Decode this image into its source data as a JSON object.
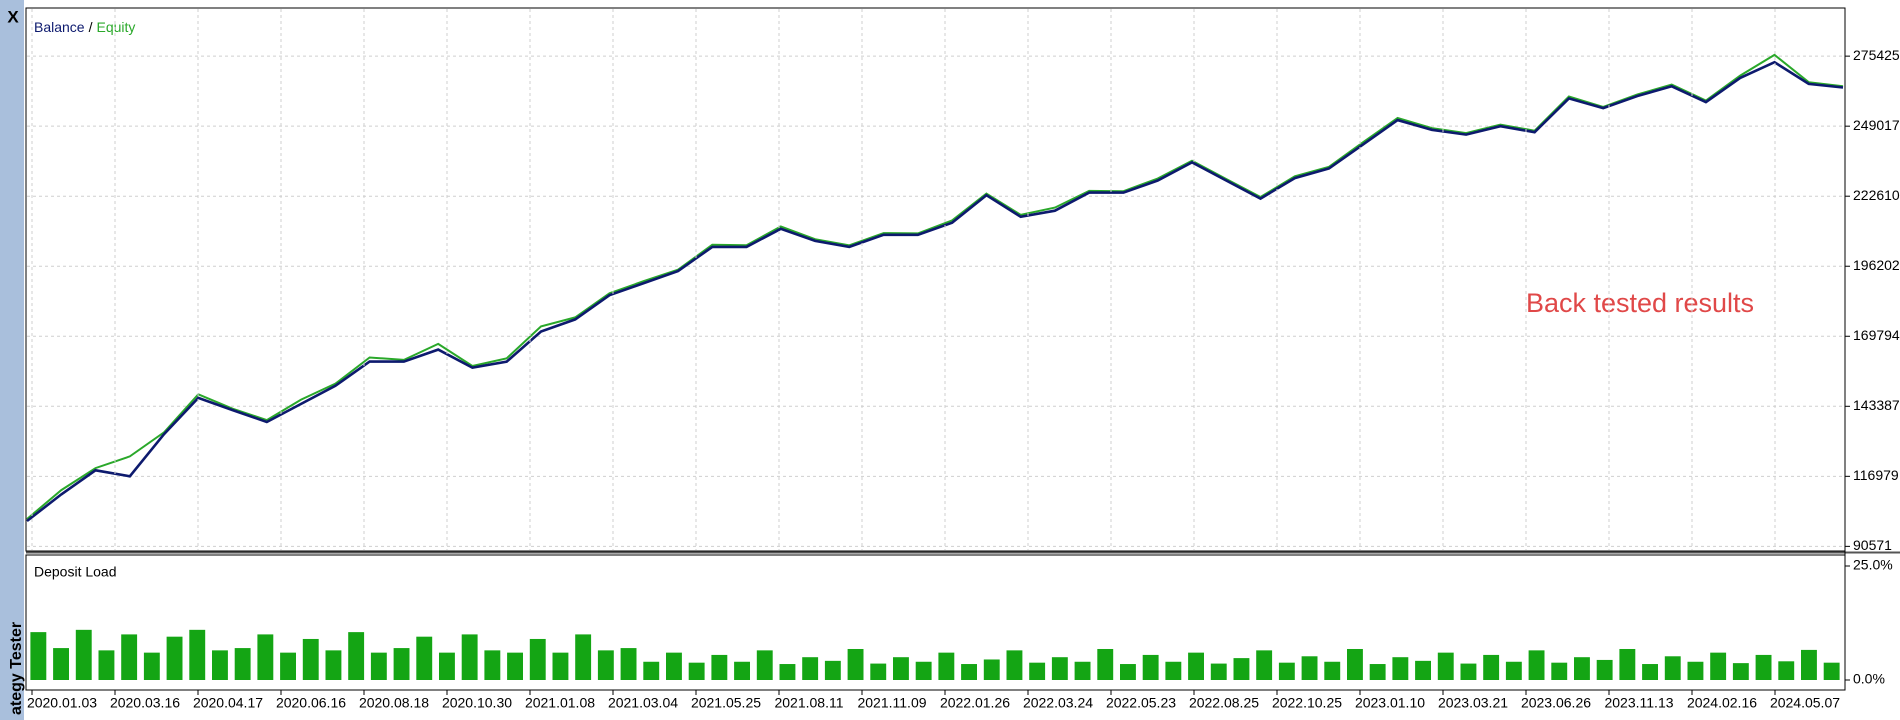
{
  "window": {
    "close": "X",
    "side_title": "ategy Tester"
  },
  "chart_data": [
    {
      "type": "line",
      "legend_separator": "/",
      "annotation": "Back tested results",
      "grid": true,
      "ylim": [
        89200,
        293200
      ],
      "yticks": [
        90571,
        116979,
        143387,
        169794,
        196202,
        222610,
        249017,
        275425
      ],
      "series": [
        {
          "name": "Balance",
          "color": "#0d1a6e",
          "values": [
            100130,
            110150,
            119260,
            116980,
            132920,
            146570,
            141970,
            137470,
            144300,
            151130,
            160230,
            160230,
            164780,
            157960,
            160230,
            171610,
            176170,
            185270,
            189830,
            194380,
            203490,
            203490,
            210320,
            205760,
            203490,
            208040,
            208040,
            212600,
            222970,
            214860,
            217150,
            223970,
            223970,
            228530,
            235360,
            228530,
            221700,
            229430,
            233080,
            242180,
            251290,
            247650,
            245830,
            249020,
            246740,
            259490,
            255850,
            260400,
            264040,
            258110,
            267230,
            273150,
            264950,
            263590
          ]
        },
        {
          "name": "Equity",
          "color": "#2aa82a",
          "values": [
            100900,
            111800,
            120100,
            124500,
            133600,
            147900,
            142500,
            138200,
            145900,
            151900,
            161800,
            160900,
            166900,
            158600,
            161500,
            173500,
            176900,
            186000,
            190600,
            194900,
            204300,
            204100,
            211200,
            206400,
            204100,
            208700,
            208600,
            213500,
            223600,
            215600,
            218300,
            224600,
            224500,
            229300,
            236000,
            229100,
            222300,
            230100,
            233700,
            243000,
            252100,
            248300,
            246400,
            249600,
            247300,
            260200,
            256300,
            261000,
            264700,
            258700,
            268100,
            275900,
            265600,
            264100
          ]
        }
      ]
    },
    {
      "type": "bar",
      "title": "Deposit Load",
      "color": "#14a514",
      "ylim": [
        0,
        25
      ],
      "yticks": [
        {
          "value": 25,
          "label": "25.0%"
        },
        {
          "value": 0,
          "label": "0.0%"
        }
      ],
      "xtick_labels": [
        "2020.01.03",
        "2020.03.16",
        "2020.04.17",
        "2020.06.16",
        "2020.08.18",
        "2020.10.30",
        "2021.01.08",
        "2021.03.04",
        "2021.05.25",
        "2021.08.11",
        "2021.11.09",
        "2022.01.26",
        "2022.03.24",
        "2022.05.23",
        "2022.08.25",
        "2022.10.25",
        "2023.01.10",
        "2023.03.21",
        "2023.06.26",
        "2023.11.13",
        "2024.02.16",
        "2024.05.07"
      ],
      "values": [
        10.5,
        7,
        11,
        6.5,
        10,
        6,
        9.5,
        11,
        6.5,
        7,
        10,
        6,
        9,
        6.5,
        10.5,
        6,
        7,
        9.5,
        6,
        10,
        6.5,
        6,
        9,
        6,
        10,
        6.5,
        7,
        4,
        6,
        3.8,
        5.5,
        4,
        6.5,
        3.5,
        5,
        4.2,
        6.8,
        3.6,
        5,
        4,
        6,
        3.5,
        4.5,
        6.5,
        3.8,
        5,
        4,
        6.8,
        3.5,
        5.5,
        4,
        6,
        3.6,
        4.8,
        6.5,
        3.8,
        5.2,
        4,
        6.8,
        3.5,
        5,
        4.2,
        6,
        3.6,
        5.5,
        4,
        6.5,
        3.8,
        5,
        4.4,
        6.8,
        3.5,
        5.2,
        4,
        6,
        3.7,
        5.5,
        4.1,
        6.6,
        3.8
      ]
    }
  ]
}
